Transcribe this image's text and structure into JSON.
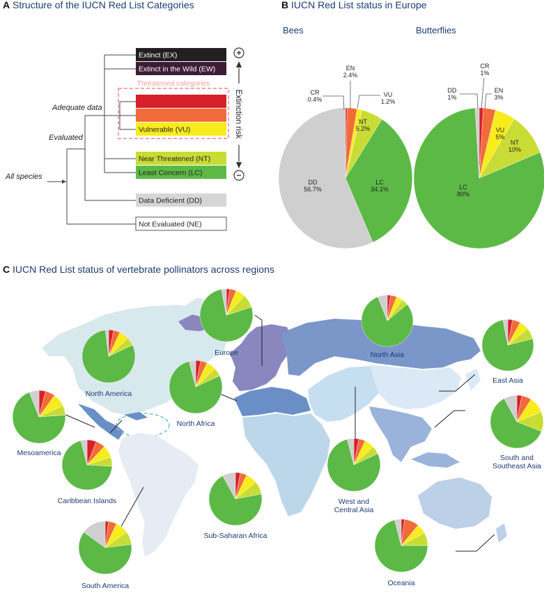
{
  "panels": {
    "a": {
      "letter": "A",
      "title": "Structure of the IUCN Red List Categories"
    },
    "b": {
      "letter": "B",
      "title": "IUCN Red List status in Europe"
    },
    "c": {
      "letter": "C",
      "title": "IUCN Red List status of vertebrate pollinators across regions"
    }
  },
  "tree": {
    "all_species": "All species",
    "evaluated": "Evaluated",
    "adequate_data": "Adequate data",
    "threatened_caption": "Threatened categories",
    "risk_label": "Extinction risk",
    "plus": "+",
    "minus": "−"
  },
  "categories": [
    {
      "label": "Extinct (EX)",
      "color": "#231f20",
      "text_color": "#ffffff"
    },
    {
      "label": "Extinct in the Wild (EW)",
      "color": "#3d1c36",
      "text_color": "#ffffff"
    },
    {
      "label": "",
      "color": "#d7202a",
      "text_color": "#ffffff"
    },
    {
      "label": "",
      "color": "#f26b3a",
      "text_color": "#ffffff"
    },
    {
      "label": "Vulnerable (VU)",
      "color": "#f8ec1c",
      "text_color": "#222222"
    },
    {
      "label": "Near Threatened (NT)",
      "color": "#c9dc35",
      "text_color": "#222222"
    },
    {
      "label": "Least Concern (LC)",
      "color": "#5cb946",
      "text_color": "#222222"
    },
    {
      "label": "Data Deficient (DD)",
      "color": "#d6d6d6",
      "text_color": "#222222"
    },
    {
      "label": "Not Evaluated (NE)",
      "color": "#ffffff",
      "text_color": "#222222"
    }
  ],
  "colors": {
    "CR": "#d7202a",
    "EN": "#f26b3a",
    "VU": "#f8ec1c",
    "NT": "#c9dc35",
    "LC": "#5cb946",
    "DD": "#cfcfcf",
    "threatened_box": "#f4a3a3",
    "title": "#1a3b73"
  },
  "chart_data": [
    {
      "type": "pie",
      "title": "Bees",
      "slices": [
        {
          "code": "CR",
          "label": "CR",
          "value": 0.4,
          "value_label": "0.4%"
        },
        {
          "code": "EN",
          "label": "EN",
          "value": 2.4,
          "value_label": "2.4%"
        },
        {
          "code": "VU",
          "label": "VU",
          "value": 1.2,
          "value_label": "1.2%"
        },
        {
          "code": "NT",
          "label": "NT",
          "value": 5.2,
          "value_label": "5.2%"
        },
        {
          "code": "LC",
          "label": "LC",
          "value": 34.1,
          "value_label": "34.1%"
        },
        {
          "code": "DD",
          "label": "DD",
          "value": 56.7,
          "value_label": "56.7%"
        }
      ]
    },
    {
      "type": "pie",
      "title": "Butterflies",
      "slices": [
        {
          "code": "CR",
          "label": "CR",
          "value": 1,
          "value_label": "1%"
        },
        {
          "code": "EN",
          "label": "EN",
          "value": 3,
          "value_label": "3%"
        },
        {
          "code": "VU",
          "label": "VU",
          "value": 5,
          "value_label": "5%"
        },
        {
          "code": "NT",
          "label": "NT",
          "value": 10,
          "value_label": "10%"
        },
        {
          "code": "LC",
          "label": "LC",
          "value": 80,
          "value_label": "80%"
        },
        {
          "code": "DD",
          "label": "DD",
          "value": 1,
          "value_label": "1%"
        }
      ]
    }
  ],
  "regions": [
    {
      "name": "Europe",
      "values": {
        "CR": 2,
        "EN": 4,
        "VU": 6,
        "NT": 8,
        "LC": 77,
        "DD": 3
      }
    },
    {
      "name": "North Asia",
      "values": {
        "CR": 2,
        "EN": 4,
        "VU": 4,
        "NT": 4,
        "LC": 80,
        "DD": 6
      }
    },
    {
      "name": "East Asia",
      "values": {
        "CR": 3,
        "EN": 5,
        "VU": 6,
        "NT": 7,
        "LC": 76,
        "DD": 3
      }
    },
    {
      "name": "North America",
      "values": {
        "CR": 3,
        "EN": 4,
        "VU": 6,
        "NT": 5,
        "LC": 80,
        "DD": 2
      }
    },
    {
      "name": "North Africa",
      "values": {
        "CR": 3,
        "EN": 4,
        "VU": 6,
        "NT": 5,
        "LC": 78,
        "DD": 4
      }
    },
    {
      "name": "Mesoamerica",
      "values": {
        "CR": 4,
        "EN": 6,
        "VU": 8,
        "NT": 6,
        "LC": 70,
        "DD": 6
      }
    },
    {
      "name": "Caribbean Islands",
      "values": {
        "CR": 6,
        "EN": 6,
        "VU": 8,
        "NT": 6,
        "LC": 70,
        "DD": 4
      }
    },
    {
      "name": "South and Southeast Asia",
      "values": {
        "CR": 3,
        "EN": 6,
        "VU": 10,
        "NT": 12,
        "LC": 61,
        "DD": 8
      }
    },
    {
      "name": "West and Central Asia",
      "values": {
        "CR": 3,
        "EN": 4,
        "VU": 6,
        "NT": 5,
        "LC": 78,
        "DD": 4
      }
    },
    {
      "name": "Sub-Saharan Africa",
      "values": {
        "CR": 3,
        "EN": 4,
        "VU": 7,
        "NT": 8,
        "LC": 70,
        "DD": 8
      }
    },
    {
      "name": "South America",
      "values": {
        "CR": 2,
        "EN": 5,
        "VU": 8,
        "NT": 8,
        "LC": 62,
        "DD": 15
      }
    },
    {
      "name": "Oceania",
      "values": {
        "CR": 2,
        "EN": 9,
        "VU": 6,
        "NT": 8,
        "LC": 71,
        "DD": 4
      }
    }
  ]
}
